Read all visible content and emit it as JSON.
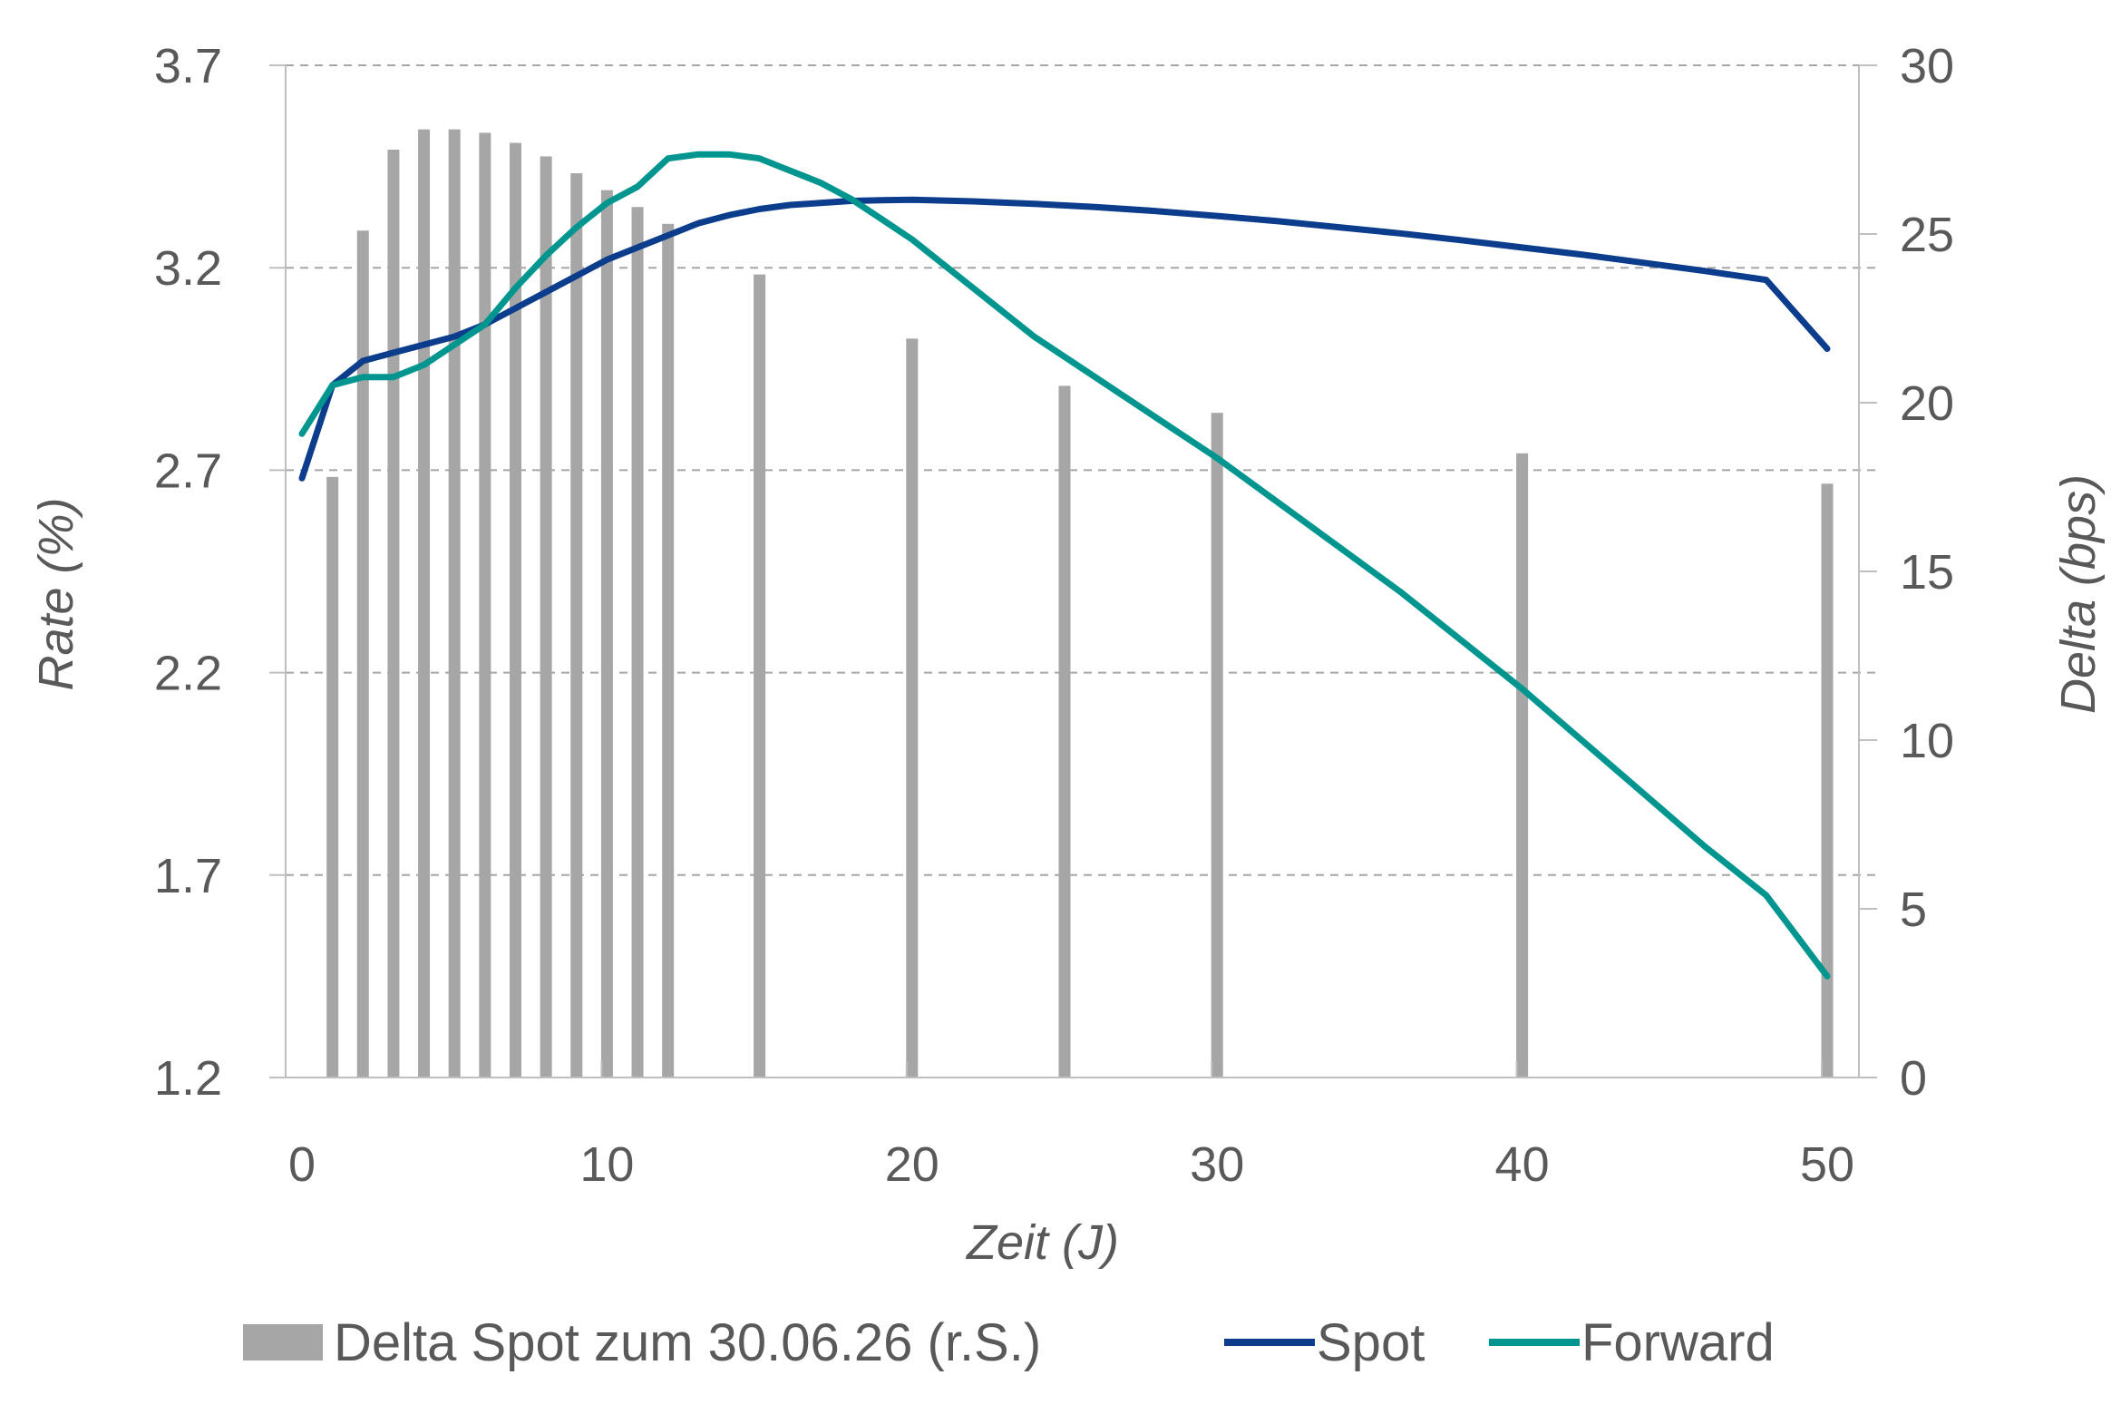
{
  "chart_data": {
    "type": "bar+line",
    "xlabel": "Zeit (J)",
    "ylabel_left": "Rate (%)",
    "ylabel_right": "Delta (bps)",
    "x_ticks": [
      0,
      10,
      20,
      30,
      40,
      50
    ],
    "xlim": [
      -0.5,
      51
    ],
    "ylim_left": [
      1.2,
      3.7
    ],
    "y_ticks_left": [
      "3.7",
      "3.2",
      "2.7",
      "2.2",
      "1.7",
      "1.2"
    ],
    "ylim_right": [
      0,
      30
    ],
    "y_ticks_right": [
      "30",
      "25",
      "20",
      "15",
      "10",
      "5",
      "0"
    ],
    "grid": "horizontal dashed",
    "legend_position": "bottom",
    "series": [
      {
        "name": "Delta Spot zum 30.06.26 (r.S.)",
        "kind": "bar",
        "axis": "right",
        "color": "#a6a6a6",
        "x": [
          1,
          2,
          3,
          4,
          5,
          6,
          7,
          8,
          9,
          10,
          11,
          12,
          15,
          20,
          25,
          30,
          40,
          50
        ],
        "values": [
          17.8,
          25.1,
          27.5,
          28.1,
          28.1,
          28.0,
          27.7,
          27.3,
          26.8,
          26.3,
          25.8,
          25.3,
          23.8,
          21.9,
          20.5,
          19.7,
          18.5,
          17.6
        ]
      },
      {
        "name": "Spot",
        "kind": "line",
        "axis": "left",
        "color": "#0b3d8c",
        "x": [
          0,
          1,
          2,
          3,
          4,
          5,
          6,
          7,
          8,
          9,
          10,
          11,
          12,
          13,
          14,
          15,
          16,
          17,
          18,
          19,
          20,
          22,
          24,
          26,
          28,
          30,
          32,
          34,
          36,
          38,
          40,
          42,
          44,
          46,
          48,
          50
        ],
        "values": [
          2.68,
          2.91,
          2.97,
          2.99,
          3.01,
          3.03,
          3.06,
          3.1,
          3.14,
          3.18,
          3.22,
          3.25,
          3.28,
          3.31,
          3.33,
          3.345,
          3.355,
          3.36,
          3.365,
          3.367,
          3.368,
          3.364,
          3.358,
          3.35,
          3.34,
          3.328,
          3.315,
          3.3,
          3.285,
          3.268,
          3.25,
          3.232,
          3.212,
          3.192,
          3.17,
          3.0
        ]
      },
      {
        "name": "Forward",
        "kind": "line",
        "axis": "left",
        "color": "#00968f",
        "x": [
          0,
          1,
          2,
          3,
          4,
          5,
          6,
          7,
          8,
          9,
          10,
          11,
          12,
          13,
          14,
          15,
          16,
          17,
          18,
          19,
          20,
          22,
          24,
          26,
          28,
          30,
          32,
          34,
          36,
          38,
          40,
          42,
          44,
          46,
          48,
          50
        ],
        "values": [
          2.79,
          2.91,
          2.93,
          2.93,
          2.96,
          3.01,
          3.06,
          3.15,
          3.23,
          3.3,
          3.36,
          3.4,
          3.47,
          3.48,
          3.48,
          3.47,
          3.44,
          3.41,
          3.37,
          3.32,
          3.27,
          3.15,
          3.03,
          2.93,
          2.83,
          2.73,
          2.62,
          2.51,
          2.4,
          2.28,
          2.16,
          2.03,
          1.9,
          1.77,
          1.65,
          1.45
        ]
      }
    ],
    "legend": [
      {
        "label": "Delta Spot zum 30.06.26 (r.S.)",
        "symbol": "rect",
        "color": "#a6a6a6"
      },
      {
        "label": "Spot",
        "symbol": "line",
        "color": "#0b3d8c"
      },
      {
        "label": "Forward",
        "symbol": "line",
        "color": "#00968f"
      }
    ]
  }
}
